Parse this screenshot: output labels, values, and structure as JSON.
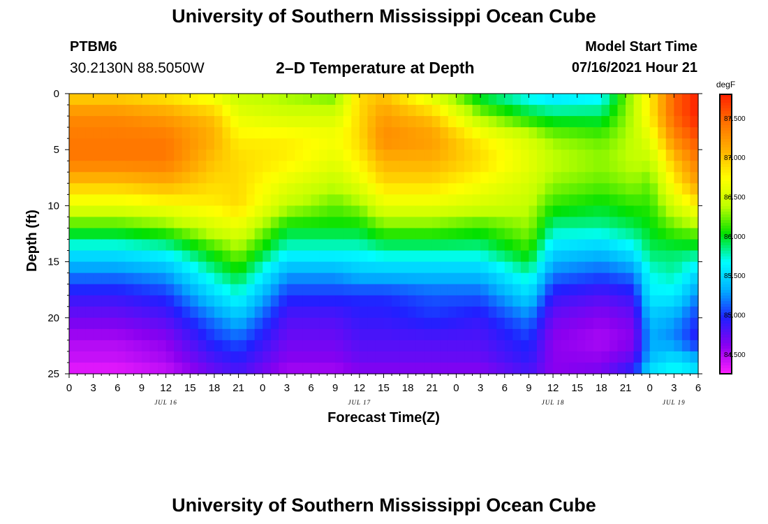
{
  "header": {
    "title": "University of Southern Mississippi Ocean Cube",
    "station_id": "PTBM6",
    "coordinates": "30.2130N  88.5050W",
    "plot_title": "2–D Temperature at Depth",
    "model_start_label": "Model Start Time",
    "model_start_value": "07/16/2021 Hour 21"
  },
  "footer": {
    "title": "University of Southern Mississippi Ocean Cube"
  },
  "chart_data": {
    "type": "heatmap",
    "title": "2–D Temperature at Depth",
    "xlabel": "Forecast Time(Z)",
    "ylabel": "Depth (ft)",
    "x_range_hours": [
      0,
      78
    ],
    "y_range": [
      0,
      25
    ],
    "y_inverted": true,
    "x_ticks": [
      "0",
      "3",
      "6",
      "9",
      "12",
      "15",
      "18",
      "21",
      "0",
      "3",
      "6",
      "9",
      "12",
      "15",
      "18",
      "21",
      "0",
      "3",
      "6",
      "9",
      "12",
      "15",
      "18",
      "21",
      "0",
      "3",
      "6"
    ],
    "y_ticks": [
      "0",
      "5",
      "10",
      "15",
      "20",
      "25"
    ],
    "day_labels": [
      {
        "label": "JUL 16",
        "hour": 12
      },
      {
        "label": "JUL 17",
        "hour": 36
      },
      {
        "label": "JUL 18",
        "hour": 60
      },
      {
        "label": "JUL 19",
        "hour": 75
      }
    ],
    "colorbar": {
      "unit": "degF",
      "range": [
        84.25,
        87.8
      ],
      "ticks": [
        "87.500",
        "87.000",
        "86.500",
        "86.000",
        "85.500",
        "85.000",
        "84.500"
      ],
      "tick_values": [
        87.5,
        87.0,
        86.5,
        86.0,
        85.5,
        85.0,
        84.5
      ],
      "colors": [
        "#ff20ff",
        "#8a00f0",
        "#2020ff",
        "#00b0ff",
        "#00ffff",
        "#00e000",
        "#c0ff00",
        "#ffff00",
        "#ffb000",
        "#ff7000",
        "#ff2000"
      ]
    },
    "profile_times": [
      0,
      6,
      12,
      18,
      21,
      27,
      33,
      36,
      39,
      45,
      51,
      57,
      60,
      66,
      70,
      72,
      75,
      78
    ],
    "profile_depths": [
      0,
      2,
      4,
      6,
      8,
      10,
      12,
      14,
      16,
      18,
      20,
      22,
      24,
      25
    ],
    "profiles": [
      [
        86.9,
        87.3,
        87.4,
        87.4,
        87.0,
        86.6,
        86.1,
        85.6,
        85.2,
        84.9,
        84.7,
        84.5,
        84.4,
        84.3
      ],
      [
        86.9,
        87.3,
        87.4,
        87.4,
        87.0,
        86.6,
        86.1,
        85.6,
        85.2,
        84.9,
        84.7,
        84.5,
        84.4,
        84.3
      ],
      [
        86.8,
        87.2,
        87.4,
        87.4,
        87.1,
        86.7,
        86.2,
        85.7,
        85.3,
        85.0,
        84.8,
        84.6,
        84.5,
        84.4
      ],
      [
        86.6,
        87.0,
        87.1,
        87.0,
        86.9,
        86.8,
        86.5,
        86.1,
        85.8,
        85.5,
        85.2,
        85.0,
        84.8,
        84.7
      ],
      [
        86.4,
        86.6,
        86.8,
        86.9,
        86.9,
        86.9,
        86.6,
        86.3,
        86.0,
        85.7,
        85.4,
        85.1,
        84.9,
        84.8
      ],
      [
        86.3,
        86.5,
        86.8,
        86.8,
        86.6,
        86.4,
        86.0,
        85.7,
        85.3,
        85.0,
        84.8,
        84.7,
        84.6,
        84.5
      ],
      [
        86.2,
        86.5,
        86.7,
        86.6,
        86.4,
        86.2,
        86.0,
        85.7,
        85.3,
        85.0,
        84.8,
        84.7,
        84.6,
        84.5
      ],
      [
        86.9,
        86.9,
        86.9,
        86.8,
        86.6,
        86.3,
        86.0,
        85.7,
        85.4,
        85.0,
        84.9,
        84.8,
        84.7,
        84.6
      ],
      [
        87.0,
        87.2,
        87.3,
        87.1,
        86.9,
        86.6,
        86.2,
        85.8,
        85.4,
        85.0,
        84.9,
        84.8,
        84.7,
        84.6
      ],
      [
        86.5,
        87.0,
        87.2,
        87.1,
        86.9,
        86.6,
        86.2,
        85.8,
        85.4,
        85.1,
        85.0,
        84.8,
        84.7,
        84.6
      ],
      [
        85.9,
        86.3,
        86.8,
        86.9,
        86.7,
        86.5,
        86.1,
        85.8,
        85.4,
        85.1,
        84.9,
        84.8,
        84.7,
        84.6
      ],
      [
        85.6,
        86.0,
        86.5,
        86.6,
        86.5,
        86.4,
        86.3,
        86.1,
        85.8,
        85.5,
        85.2,
        85.0,
        84.9,
        84.8
      ],
      [
        85.5,
        85.9,
        86.3,
        86.4,
        86.3,
        86.1,
        85.8,
        85.5,
        85.2,
        84.9,
        84.7,
        84.6,
        84.6,
        84.6
      ],
      [
        85.6,
        85.9,
        86.2,
        86.3,
        86.2,
        86.0,
        85.8,
        85.4,
        85.1,
        84.8,
        84.6,
        84.5,
        84.6,
        84.7
      ],
      [
        86.4,
        86.4,
        86.4,
        86.4,
        86.3,
        86.1,
        85.9,
        85.6,
        85.2,
        84.9,
        84.7,
        84.6,
        84.8,
        85.0
      ],
      [
        86.8,
        86.8,
        86.6,
        86.4,
        86.2,
        86.1,
        86.0,
        85.9,
        85.7,
        85.6,
        85.4,
        85.3,
        85.4,
        85.6
      ],
      [
        87.5,
        87.5,
        87.3,
        87.0,
        86.8,
        86.5,
        86.2,
        85.9,
        85.8,
        85.6,
        85.3,
        85.2,
        85.6,
        85.7
      ],
      [
        87.8,
        87.8,
        87.6,
        87.4,
        87.2,
        86.8,
        86.3,
        85.9,
        85.5,
        85.2,
        85.0,
        84.9,
        85.4,
        85.6
      ]
    ]
  }
}
